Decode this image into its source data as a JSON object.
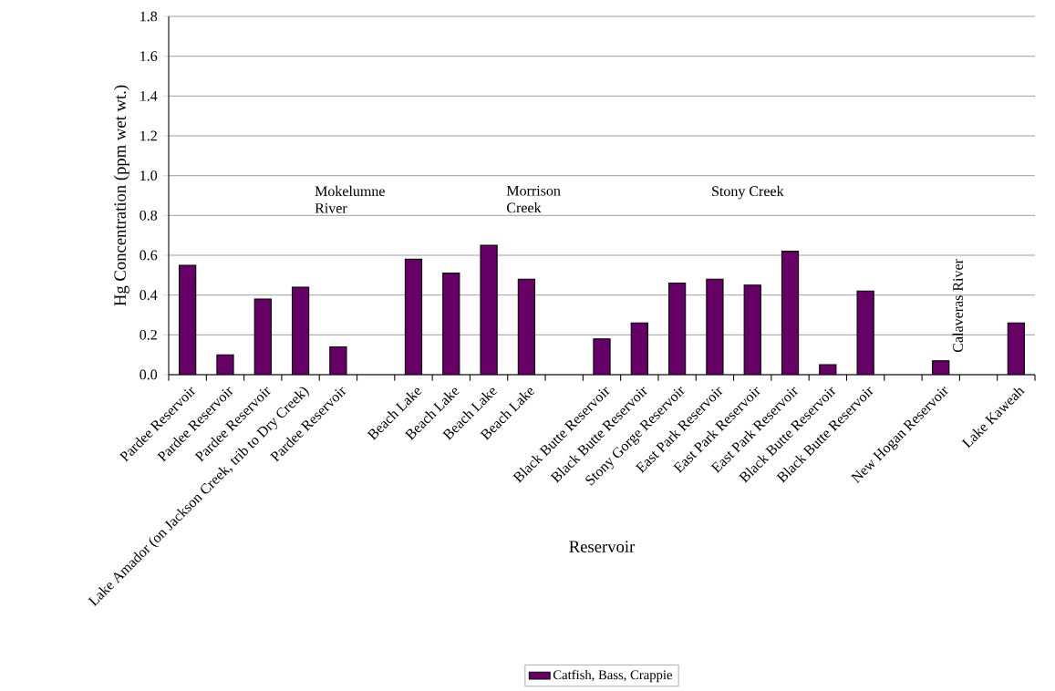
{
  "chart_data": {
    "type": "bar",
    "xlabel": "Reservoir",
    "ylabel": "Hg Concentration (ppm wet wt.)",
    "categories": [
      "Pardee Reservoir",
      "Pardee Reservoir",
      "Pardee Reservoir",
      "Lake Amador (on Jackson Creek, trib to Dry Creek)",
      "Pardee Reservoir",
      null,
      "Beach Lake",
      "Beach Lake",
      "Beach Lake",
      "Beach Lake",
      null,
      "Black Butte Reservoir",
      "Black Butte Reservoir",
      "Stony Gorge Reservoir",
      "East Park Reservoir",
      "East Park Reservoir",
      "East Park Reservoir",
      "Black Butte Reservoir",
      "Black Butte Reservoir",
      null,
      "New Hogan Reservoir",
      null,
      "Lake Kaweah"
    ],
    "series": [
      {
        "name": "Catfish, Bass, Crappie",
        "color": "#660066",
        "values": [
          0.55,
          0.1,
          0.38,
          0.44,
          0.14,
          null,
          0.58,
          0.51,
          0.65,
          0.48,
          null,
          0.18,
          0.26,
          0.46,
          0.48,
          0.45,
          0.62,
          0.05,
          0.42,
          null,
          0.07,
          null,
          0.26
        ]
      }
    ],
    "ylim": [
      0,
      1.8
    ],
    "yticks": [
      {
        "value": 0,
        "label": "0.0"
      },
      {
        "value": 0.2,
        "label": "0.2"
      },
      {
        "value": 0.4,
        "label": "0.4"
      },
      {
        "value": 0.6,
        "label": "0.6"
      },
      {
        "value": 0.8,
        "label": "0.8"
      },
      {
        "value": 1.0,
        "label": "1.0"
      },
      {
        "value": 1.2,
        "label": "1.2"
      },
      {
        "value": 1.4,
        "label": "1.4"
      },
      {
        "value": 1.6,
        "label": "1.6"
      },
      {
        "value": 1.8,
        "label": "1.8"
      }
    ],
    "grid": "y",
    "legend": "bottom",
    "annotations": [
      "Mokelumne River",
      "Morrison Creek",
      "Stony Creek",
      "Calaveras River"
    ]
  }
}
